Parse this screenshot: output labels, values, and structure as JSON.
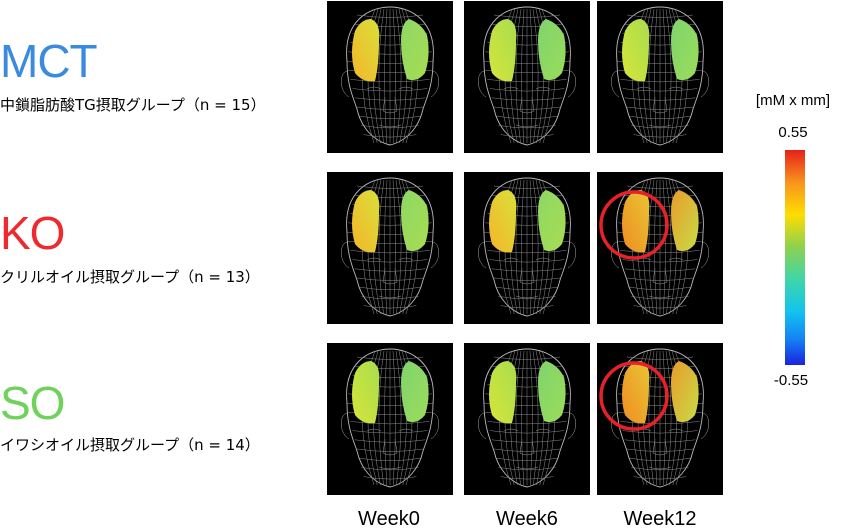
{
  "groups": [
    {
      "code": "MCT",
      "description": "中鎖脂肪酸TG摂取グループ（n = 15）",
      "color": "#3a8be0",
      "weeks": [
        "warm",
        "cool",
        "cool"
      ],
      "highlight": [
        false,
        false,
        false
      ]
    },
    {
      "code": "KO",
      "description": "クリルオイル摂取グループ（n = 13）",
      "color": "#ee2a2f",
      "weeks": [
        "warm",
        "warm",
        "hot"
      ],
      "highlight": [
        false,
        false,
        true
      ]
    },
    {
      "code": "SO",
      "description": "イワシオイル摂取グループ（n = 14）",
      "color": "#6fd25c",
      "weeks": [
        "cool",
        "cool",
        "hot"
      ],
      "highlight": [
        false,
        false,
        true
      ]
    }
  ],
  "weeks": [
    "Week0",
    "Week6",
    "Week12"
  ],
  "colorbar": {
    "unit": "[mM x mm]",
    "max": "0.55",
    "min": "-0.55"
  },
  "highlight_color": "#e8202a"
}
